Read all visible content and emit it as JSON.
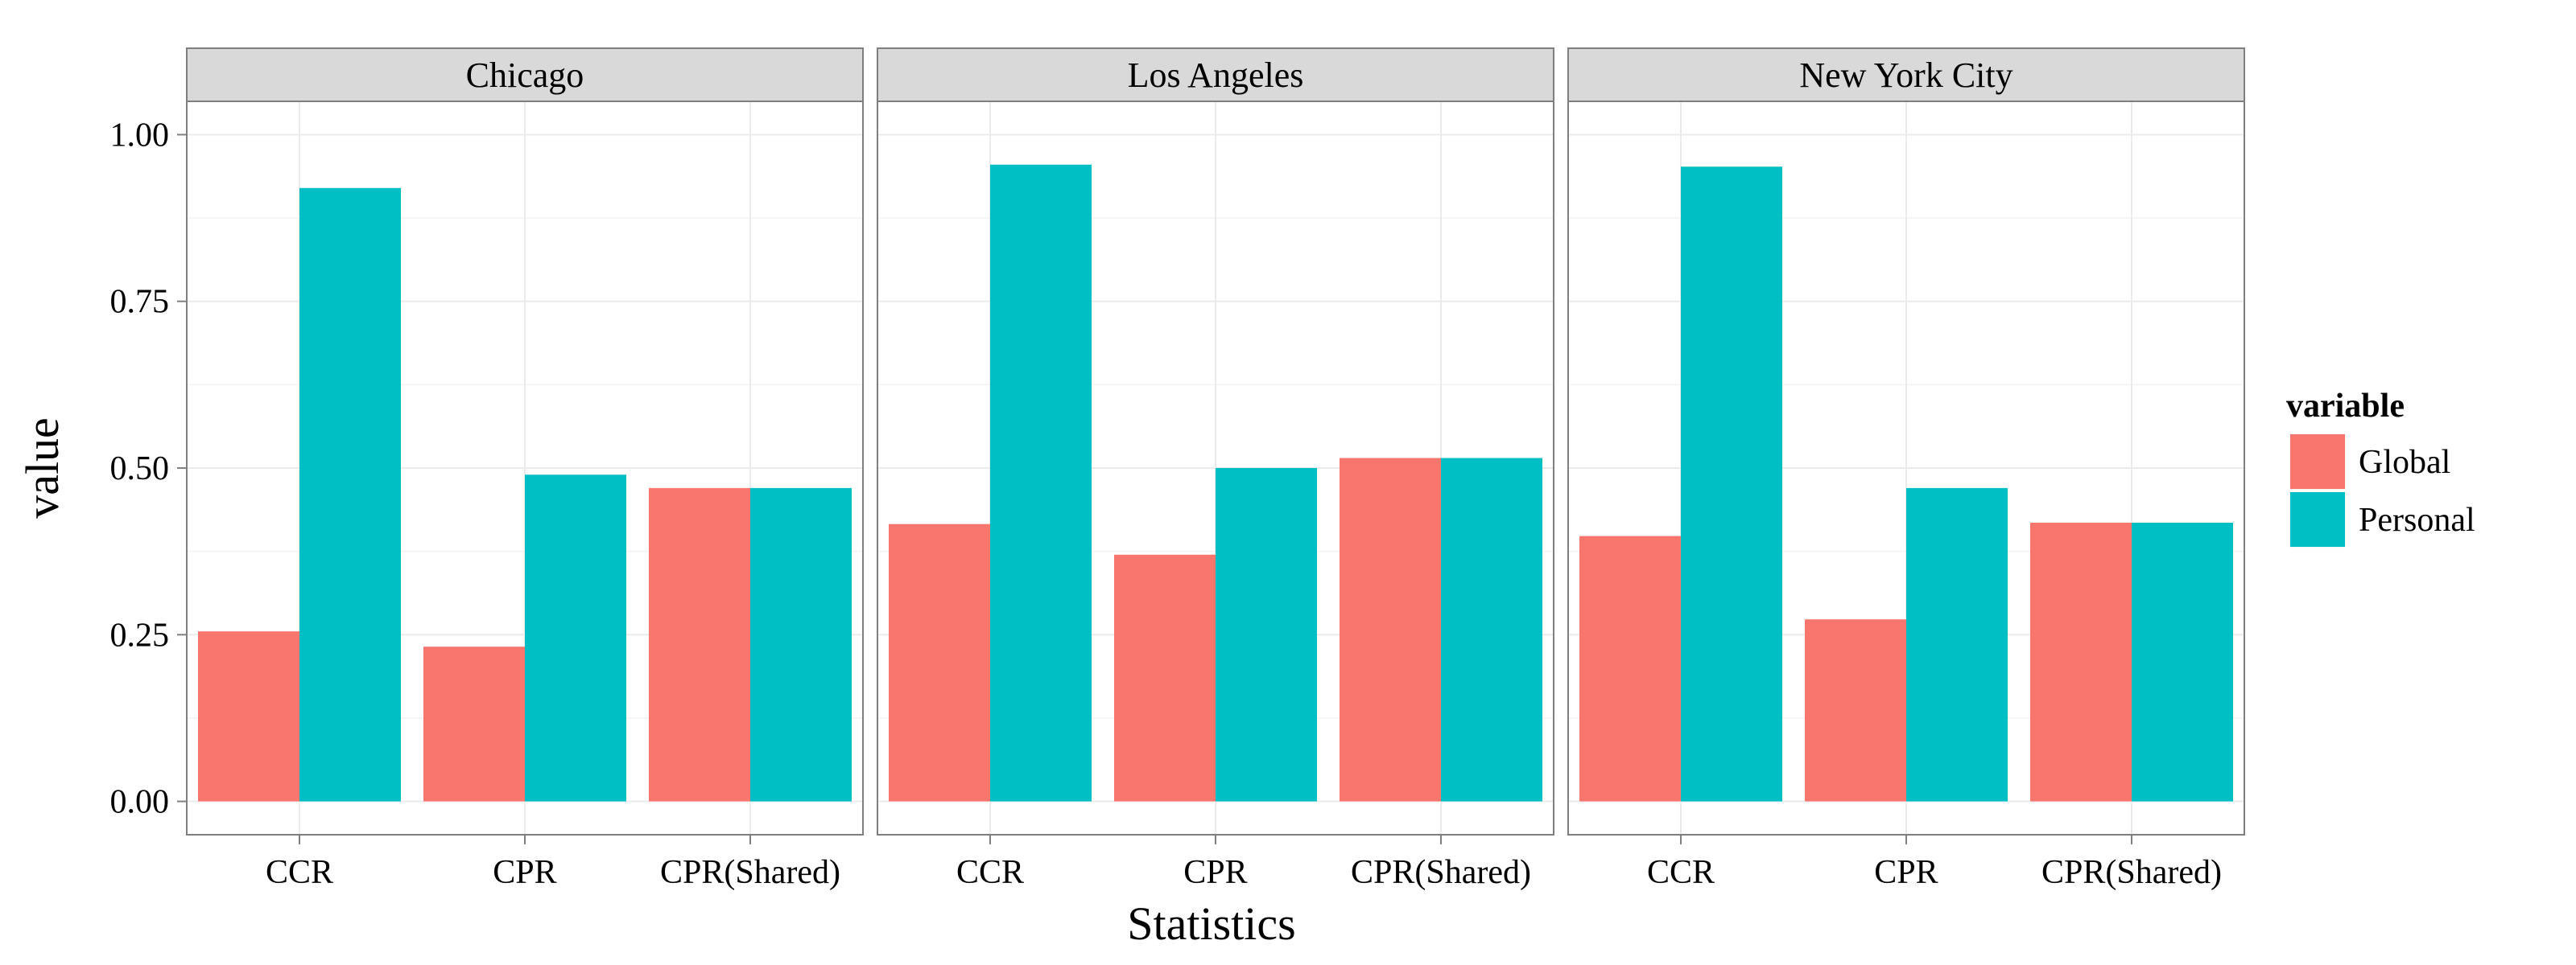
{
  "chart_data": {
    "type": "bar",
    "layout": "faceted",
    "facets": [
      "Chicago",
      "Los Angeles",
      "New York City"
    ],
    "categories": [
      "CCR",
      "CPR",
      "CPR(Shared)"
    ],
    "series": [
      {
        "name": "Global",
        "color": "#F8766D",
        "values": [
          [
            0.255,
            0.232,
            0.47
          ],
          [
            0.416,
            0.37,
            0.515
          ],
          [
            0.398,
            0.273,
            0.418
          ]
        ]
      },
      {
        "name": "Personal",
        "color": "#00BFC4",
        "values": [
          [
            0.92,
            0.49,
            0.47
          ],
          [
            0.955,
            0.5,
            0.515
          ],
          [
            0.952,
            0.47,
            0.418
          ]
        ]
      }
    ],
    "xlabel": "Statistics",
    "ylabel": "value",
    "ylim": [
      -0.05,
      1.05
    ],
    "yticks": [
      "0.00",
      "0.25",
      "0.50",
      "0.75",
      "1.00"
    ],
    "ytick_values": [
      0,
      0.25,
      0.5,
      0.75,
      1.0
    ],
    "legend_title": "variable",
    "legend_position": "right",
    "grid": true,
    "panel_background": "#ffffff",
    "strip_background": "#d9d9d9"
  }
}
